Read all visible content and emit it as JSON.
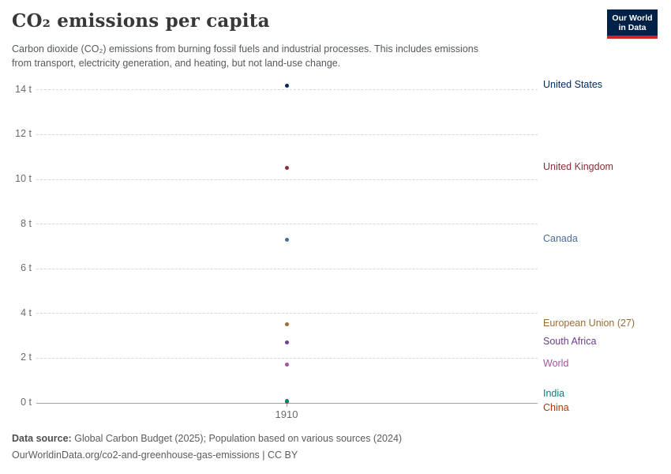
{
  "header": {
    "title": "CO₂ emissions per capita",
    "subtitle_lines": [
      "Carbon dioxide (CO₂) emissions from burning fossil fuels and industrial processes. This includes emissions",
      "from transport, electricity generation, and heating, but not land-use change."
    ],
    "logo": {
      "line1": "Our World",
      "line2": "in Data",
      "bg_color": "#002147",
      "accent_color": "#CE241C"
    }
  },
  "chart_data": {
    "type": "scatter",
    "title": "CO₂ emissions per capita",
    "xlabel": "",
    "ylabel": "",
    "x_tick_label": "1910",
    "year": 1910,
    "unit": "tonnes per person",
    "ylim": [
      0,
      14
    ],
    "ytick_step": 2,
    "ytick_suffix": " t",
    "grid": "horizontal-dashed",
    "legend_position": "right-entity-labels",
    "series": [
      {
        "name": "United States",
        "value": 14.2,
        "color": "#00295B"
      },
      {
        "name": "United Kingdom",
        "value": 10.5,
        "color": "#883039"
      },
      {
        "name": "Canada",
        "value": 7.3,
        "color": "#4C6A9C"
      },
      {
        "name": "European Union (27)",
        "value": 3.5,
        "color": "#996D39"
      },
      {
        "name": "South Africa",
        "value": 2.7,
        "color": "#6D3E91"
      },
      {
        "name": "World",
        "value": 1.7,
        "color": "#A2559C"
      },
      {
        "name": "India",
        "value": 0.1,
        "color": "#00847E"
      },
      {
        "name": "China",
        "value": 0.04,
        "color": "#B13507"
      }
    ]
  },
  "footer": {
    "data_source_label": "Data source:",
    "data_source_text": "Global Carbon Budget (2025); Population based on various sources (2024)",
    "link_line": "OurWorldinData.org/co2-and-greenhouse-gas-emissions | CC BY"
  }
}
